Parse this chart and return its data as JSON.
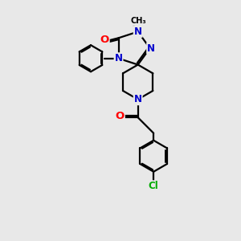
{
  "bg_color": "#e8e8e8",
  "bond_color": "#000000",
  "bond_width": 1.6,
  "atom_colors": {
    "N": "#0000cc",
    "O": "#ff0000",
    "Cl": "#00aa00",
    "C": "#000000"
  },
  "font_size": 8.5
}
